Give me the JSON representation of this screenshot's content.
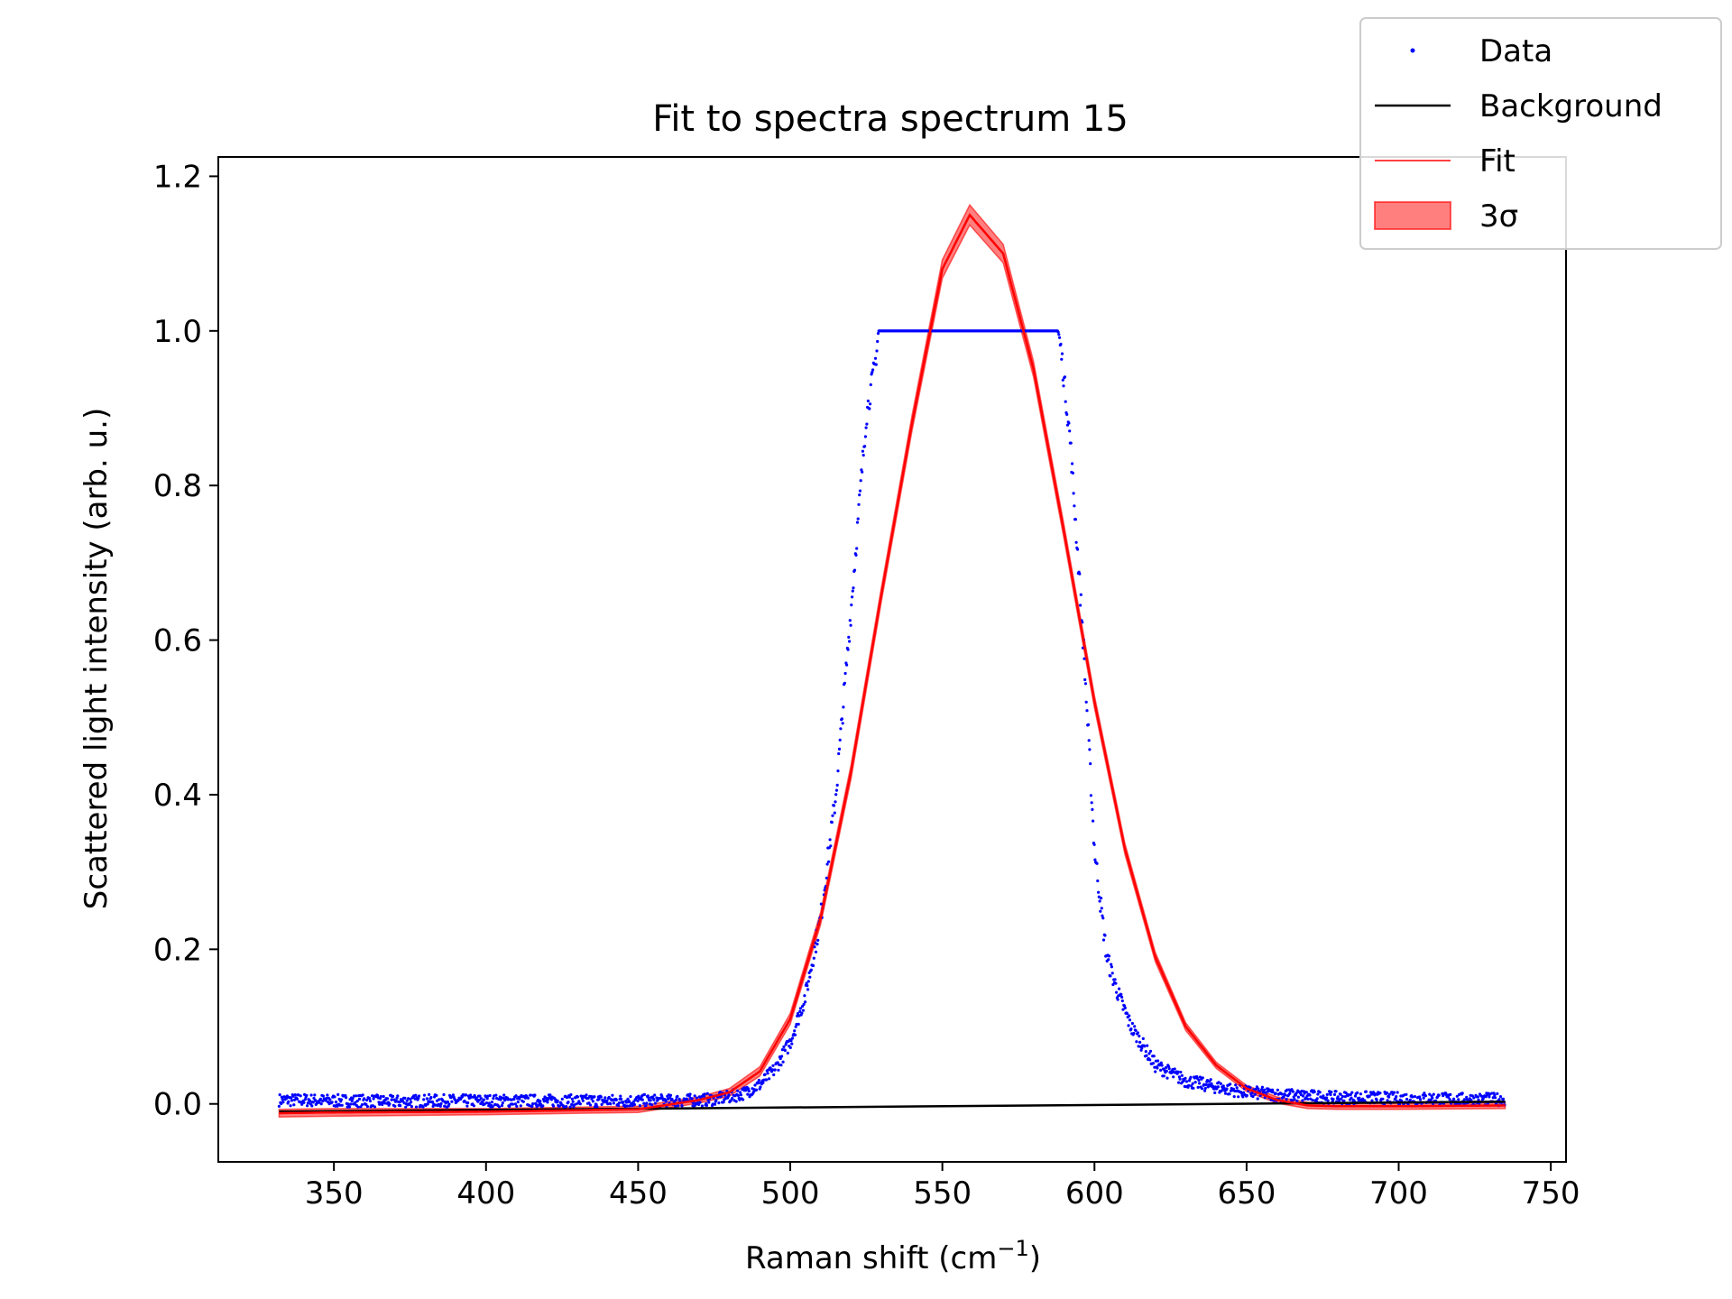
{
  "chart_data": {
    "type": "scatter",
    "title": "Fit to spectra spectrum 15",
    "xlabel": "Raman shift (cm",
    "xlabel_sup": "−1",
    "xlabel_end": ")",
    "ylabel": "Scattered light intensity (arb. u.)",
    "xlim": [
      312,
      755
    ],
    "ylim": [
      -0.075,
      1.225
    ],
    "x_ticks": [
      350,
      400,
      450,
      500,
      550,
      600,
      650,
      700,
      750
    ],
    "x_tick_labels": [
      "350",
      "400",
      "450",
      "500",
      "550",
      "600",
      "650",
      "700",
      "750"
    ],
    "y_ticks": [
      0.0,
      0.2,
      0.4,
      0.6,
      0.8,
      1.0,
      1.2
    ],
    "y_tick_labels": [
      "0.0",
      "0.2",
      "0.4",
      "0.6",
      "0.8",
      "1.0",
      "1.2"
    ],
    "grid": false,
    "legend_position": "top-right",
    "legend": [
      {
        "label": "Data",
        "marker": "point"
      },
      {
        "label": "Background",
        "marker": "line"
      },
      {
        "label": "Fit",
        "marker": "line"
      },
      {
        "label": "3σ",
        "marker": "patch"
      }
    ],
    "series": [
      {
        "name": "Data",
        "kind": "scatter",
        "color": "#0000ff",
        "x": [
          332,
          340,
          350,
          360,
          370,
          380,
          390,
          400,
          410,
          420,
          430,
          440,
          450,
          460,
          470,
          475,
          480,
          485,
          490,
          495,
          500,
          505,
          510,
          515,
          520,
          525,
          528,
          529,
          540,
          550,
          560,
          570,
          580,
          588,
          589,
          592,
          596,
          600,
          604,
          608,
          612,
          616,
          620,
          625,
          630,
          640,
          650,
          660,
          670,
          680,
          690,
          700,
          710,
          720,
          730,
          735
        ],
        "y": [
          0.005,
          0.005,
          0.004,
          0.004,
          0.003,
          0.004,
          0.004,
          0.004,
          0.004,
          0.004,
          0.004,
          0.004,
          0.004,
          0.004,
          0.005,
          0.006,
          0.009,
          0.014,
          0.025,
          0.045,
          0.08,
          0.14,
          0.24,
          0.4,
          0.64,
          0.89,
          0.96,
          1.0,
          1.0,
          1.0,
          1.0,
          1.0,
          1.0,
          1.0,
          0.975,
          0.86,
          0.62,
          0.33,
          0.19,
          0.14,
          0.1,
          0.075,
          0.05,
          0.04,
          0.03,
          0.022,
          0.015,
          0.012,
          0.01,
          0.008,
          0.008,
          0.007,
          0.007,
          0.006,
          0.006,
          0.006
        ]
      },
      {
        "name": "Background",
        "kind": "line",
        "color": "#000000",
        "x": [
          332,
          735
        ],
        "y": [
          -0.01,
          0.003
        ]
      },
      {
        "name": "Fit",
        "kind": "line",
        "color": "#ff0000",
        "x": [
          332,
          350,
          400,
          450,
          470,
          480,
          490,
          500,
          510,
          520,
          530,
          540,
          550,
          559,
          570,
          580,
          590,
          600,
          610,
          620,
          630,
          640,
          650,
          660,
          670,
          680,
          700,
          735
        ],
        "y": [
          -0.012,
          -0.011,
          -0.01,
          -0.007,
          0.005,
          0.015,
          0.042,
          0.11,
          0.24,
          0.43,
          0.66,
          0.88,
          1.08,
          1.15,
          1.1,
          0.95,
          0.74,
          0.52,
          0.33,
          0.19,
          0.1,
          0.05,
          0.02,
          0.005,
          -0.002,
          -0.003,
          -0.003,
          -0.002
        ]
      },
      {
        "name": "3σ",
        "kind": "band",
        "color": "#ff0000",
        "x": [
          332,
          350,
          400,
          450,
          470,
          480,
          490,
          500,
          510,
          520,
          530,
          540,
          550,
          559,
          570,
          580,
          590,
          600,
          610,
          620,
          630,
          640,
          650,
          660,
          670,
          680,
          700,
          735
        ],
        "y_low": [
          -0.017,
          -0.016,
          -0.014,
          -0.011,
          0.001,
          0.01,
          0.036,
          0.103,
          0.232,
          0.421,
          0.651,
          0.87,
          1.068,
          1.137,
          1.088,
          0.94,
          0.731,
          0.512,
          0.323,
          0.184,
          0.095,
          0.046,
          0.016,
          0.001,
          -0.006,
          -0.007,
          -0.007,
          -0.006
        ],
        "y_high": [
          -0.007,
          -0.006,
          -0.006,
          -0.003,
          0.009,
          0.02,
          0.048,
          0.117,
          0.248,
          0.439,
          0.669,
          0.89,
          1.092,
          1.163,
          1.112,
          0.96,
          0.749,
          0.528,
          0.337,
          0.196,
          0.105,
          0.054,
          0.024,
          0.009,
          0.002,
          0.001,
          0.001,
          0.002
        ]
      }
    ]
  }
}
